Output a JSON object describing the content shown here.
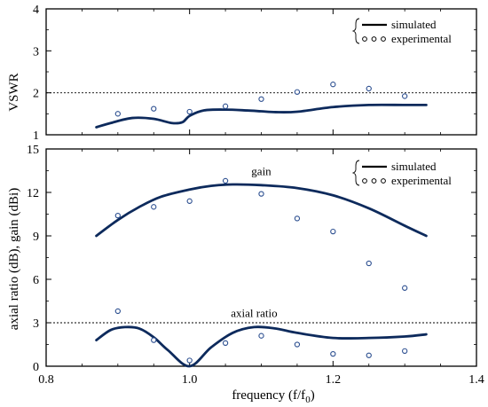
{
  "colors": {
    "simulated": "#0d2a5c",
    "experimental": "#2a4d8f",
    "frame": "#000000"
  },
  "chart_data": [
    {
      "type": "line",
      "id": "vswr",
      "ylabel": "VSWR",
      "xlim": [
        0.8,
        1.4
      ],
      "ylim": [
        1,
        4
      ],
      "yticks": [
        "1",
        "2",
        "3",
        "4"
      ],
      "reference_line": {
        "y": 2,
        "style": "dashed"
      },
      "legend": {
        "position": "top-right",
        "entries": [
          "simulated",
          "experimental"
        ]
      },
      "series": [
        {
          "name": "simulated",
          "style": "line",
          "x": [
            0.87,
            0.89,
            0.92,
            0.95,
            0.975,
            0.99,
            1.0,
            1.02,
            1.05,
            1.08,
            1.1,
            1.12,
            1.15,
            1.2,
            1.25,
            1.3,
            1.33
          ],
          "y": [
            1.18,
            1.28,
            1.4,
            1.38,
            1.28,
            1.3,
            1.45,
            1.58,
            1.6,
            1.58,
            1.56,
            1.54,
            1.55,
            1.66,
            1.71,
            1.71,
            1.71
          ]
        },
        {
          "name": "experimental",
          "style": "markers",
          "x": [
            0.9,
            0.95,
            1.0,
            1.05,
            1.1,
            1.15,
            1.2,
            1.25,
            1.3
          ],
          "y": [
            1.5,
            1.62,
            1.55,
            1.68,
            1.85,
            2.02,
            2.2,
            2.1,
            1.92
          ]
        }
      ]
    },
    {
      "type": "line",
      "id": "gain-axial",
      "xlabel_main": "frequency (f/f",
      "xlabel_sub": "0",
      "xlabel_end": ")",
      "ylabel": "axial ratio (dB), gain (dBi)",
      "xlim": [
        0.8,
        1.4
      ],
      "ylim": [
        0,
        15
      ],
      "xticks": [
        "0.8",
        "1.0",
        "1.2",
        "1.4"
      ],
      "yticks": [
        "0",
        "3",
        "6",
        "9",
        "12",
        "15"
      ],
      "reference_line": {
        "y": 3,
        "style": "dashed"
      },
      "annotations": [
        {
          "text": "gain",
          "x": 1.1,
          "y": 13.2
        },
        {
          "text": "axial ratio",
          "x": 1.09,
          "y": 3.4
        }
      ],
      "legend": {
        "position": "top-right",
        "entries": [
          "simulated",
          "experimental"
        ]
      },
      "series": [
        {
          "name": "simulated",
          "group": "gain",
          "style": "line",
          "x": [
            0.87,
            0.9,
            0.93,
            0.96,
            1.0,
            1.03,
            1.06,
            1.1,
            1.15,
            1.2,
            1.25,
            1.3,
            1.33
          ],
          "y": [
            9.0,
            10.1,
            11.0,
            11.7,
            12.2,
            12.45,
            12.55,
            12.5,
            12.3,
            11.8,
            10.9,
            9.7,
            9.0
          ]
        },
        {
          "name": "simulated",
          "group": "axial ratio",
          "style": "line",
          "x": [
            0.87,
            0.89,
            0.91,
            0.93,
            0.95,
            0.97,
            1.0,
            1.03,
            1.06,
            1.09,
            1.12,
            1.15,
            1.2,
            1.25,
            1.3,
            1.33
          ],
          "y": [
            1.8,
            2.5,
            2.7,
            2.6,
            2.0,
            1.1,
            0.0,
            1.3,
            2.3,
            2.7,
            2.6,
            2.3,
            1.95,
            1.95,
            2.05,
            2.2
          ]
        },
        {
          "name": "experimental",
          "group": "gain",
          "style": "markers",
          "x": [
            0.9,
            0.95,
            1.0,
            1.05,
            1.1,
            1.15,
            1.2,
            1.25,
            1.3
          ],
          "y": [
            10.4,
            11.0,
            11.4,
            12.8,
            11.9,
            10.2,
            9.3,
            7.1,
            5.4
          ]
        },
        {
          "name": "experimental",
          "group": "axial ratio",
          "style": "markers",
          "x": [
            0.9,
            0.95,
            1.0,
            1.05,
            1.1,
            1.15,
            1.2,
            1.25,
            1.3
          ],
          "y": [
            3.8,
            1.8,
            0.4,
            1.6,
            2.1,
            1.5,
            0.85,
            0.75,
            1.05
          ]
        }
      ]
    }
  ]
}
